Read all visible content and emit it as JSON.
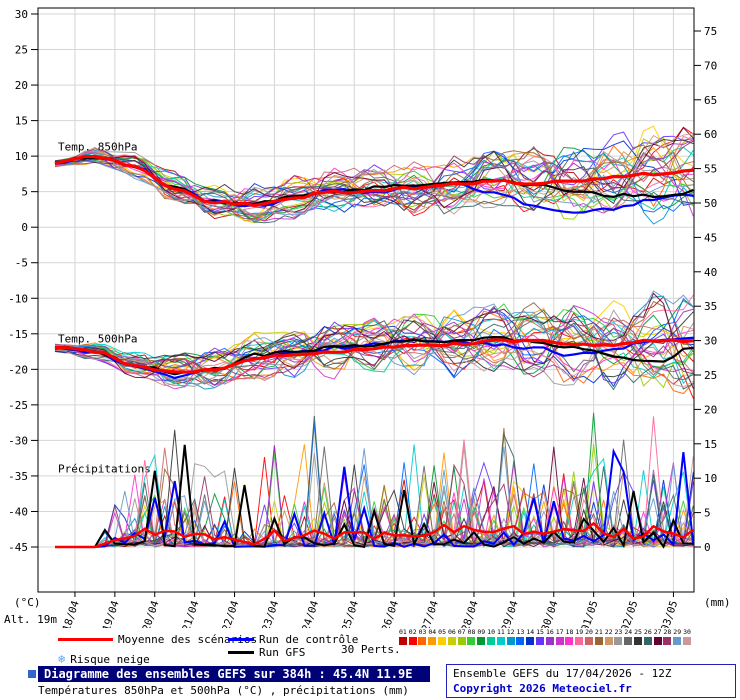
{
  "page": {
    "alt_label": "Alt. 19m",
    "unit_left": "(°C)",
    "unit_right": "(mm)"
  },
  "legend": {
    "mean_label": "Moyenne des scénarios",
    "control_label": "Run de contrôle",
    "gfs_label": "Run GFS",
    "perts_label": "30 Perts.",
    "snow_icon": "❄",
    "snow_label": "Risque neige",
    "mean_color": "#ff0000",
    "control_color": "#0000ff",
    "gfs_color": "#000000",
    "member_numbers": [
      "01",
      "02",
      "03",
      "04",
      "05",
      "06",
      "07",
      "08",
      "09",
      "10",
      "11",
      "12",
      "13",
      "14",
      "15",
      "16",
      "17",
      "18",
      "19",
      "20",
      "21",
      "22",
      "23",
      "24",
      "25",
      "26",
      "27",
      "28",
      "29",
      "30"
    ],
    "member_colors": [
      "#c00000",
      "#ff0000",
      "#ff6600",
      "#ff9900",
      "#ffcc00",
      "#cccc00",
      "#99cc00",
      "#33cc33",
      "#009933",
      "#00cc99",
      "#00cccc",
      "#0099cc",
      "#0066ff",
      "#0033cc",
      "#6633ff",
      "#9933cc",
      "#cc33cc",
      "#ff33cc",
      "#ff6699",
      "#cc6666",
      "#996633",
      "#cc9966",
      "#999999",
      "#666666",
      "#333333",
      "#336666",
      "#660033",
      "#993366",
      "#6699cc",
      "#cc9999"
    ]
  },
  "footer": {
    "title": "Diagramme des ensembles GEFS sur 384h : 45.4N 11.9E",
    "subtitle": "Températures 850hPa et 500hPa (°C) , précipitations (mm)",
    "run_info": "Ensemble GEFS du 17/04/2026 - 12Z",
    "copyright": "Copyright 2026 Meteociel.fr"
  },
  "chart_data": {
    "type": "line",
    "title": "Diagramme des ensembles GEFS sur 384h : 45.4N 11.9E",
    "hours_span": 384,
    "step_hours": 6,
    "x_labels": [
      "18/04",
      "19/04",
      "20/04",
      "21/04",
      "22/04",
      "23/04",
      "24/04",
      "25/04",
      "26/04",
      "27/04",
      "28/04",
      "29/04",
      "30/04",
      "01/05",
      "02/05",
      "03/05"
    ],
    "y_left": {
      "min": -45,
      "max": 30,
      "tick_step": 5,
      "unit": "°C"
    },
    "y_right": {
      "min": 0,
      "max": 75,
      "tick_step": 5,
      "unit": "mm"
    },
    "panel_labels": {
      "t850": "Temp. 850hPa",
      "t500": "Temp. 500hPa",
      "precip": "Précipitations"
    },
    "n_members": 30,
    "seed": 1234,
    "series_daily": {
      "days": [
        0,
        1,
        2,
        3,
        4,
        5,
        6,
        7,
        8,
        9,
        10,
        11,
        12,
        13,
        14,
        15,
        16
      ],
      "t850_mean": [
        9.0,
        10.0,
        8.5,
        5.5,
        3.5,
        3.2,
        4.2,
        5.0,
        5.0,
        5.5,
        6.0,
        6.5,
        6.2,
        6.5,
        7.0,
        7.5,
        8.0
      ],
      "t850_spread": [
        0.4,
        1.0,
        1.5,
        1.8,
        2.0,
        2.2,
        2.4,
        2.6,
        3.0,
        3.2,
        3.4,
        3.6,
        4.0,
        4.5,
        5.0,
        5.2,
        5.5
      ],
      "t850_control": [
        9.0,
        10.0,
        8.6,
        5.4,
        3.6,
        3.0,
        4.0,
        5.2,
        5.0,
        5.8,
        6.0,
        5.0,
        3.0,
        2.0,
        2.5,
        4.0,
        4.5
      ],
      "t850_gfs": [
        9.0,
        10.0,
        8.4,
        5.6,
        3.4,
        3.3,
        4.5,
        5.0,
        5.5,
        6.0,
        6.5,
        6.5,
        6.0,
        5.0,
        4.5,
        4.5,
        5.0
      ],
      "t500_mean": [
        -17.0,
        -17.5,
        -19.5,
        -20.5,
        -20.0,
        -18.5,
        -18.0,
        -17.5,
        -17.0,
        -16.5,
        -16.5,
        -16.0,
        -16.0,
        -16.5,
        -16.5,
        -16.0,
        -16.0
      ],
      "t500_spread": [
        0.4,
        1.0,
        1.5,
        2.0,
        2.5,
        2.8,
        3.0,
        3.2,
        3.5,
        3.5,
        4.0,
        4.0,
        4.5,
        4.5,
        5.0,
        5.5,
        6.0
      ],
      "t500_control": [
        -17.0,
        -17.5,
        -19.6,
        -21.0,
        -20.0,
        -18.5,
        -17.5,
        -17.0,
        -16.5,
        -16.0,
        -16.0,
        -16.5,
        -17.0,
        -18.0,
        -17.0,
        -16.0,
        -15.5
      ],
      "t500_gfs": [
        -17.0,
        -17.5,
        -19.4,
        -20.5,
        -20.0,
        -18.0,
        -17.5,
        -17.0,
        -16.5,
        -16.0,
        -16.0,
        -15.5,
        -16.0,
        -17.0,
        -18.0,
        -19.0,
        -17.0
      ],
      "precip_level": [
        0.0,
        0.3,
        2.5,
        2.0,
        1.0,
        0.6,
        1.5,
        1.5,
        2.0,
        2.5,
        2.0,
        2.5,
        2.0,
        2.5,
        3.0,
        2.5,
        1.5
      ]
    }
  }
}
